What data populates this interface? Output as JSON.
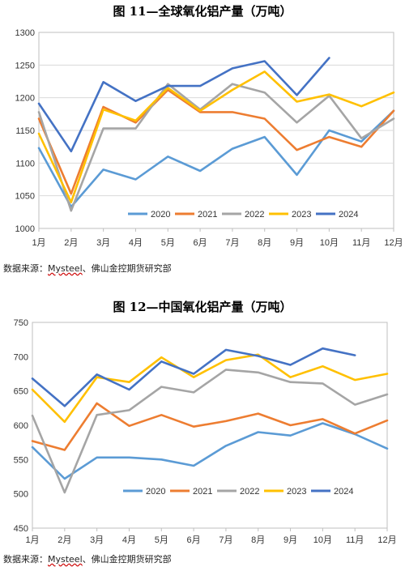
{
  "charts_meta": [
    {
      "title": "图 11—全球氧化铝产量（万吨）",
      "source_prefix": "数据来源：",
      "source_brand": "Mysteel",
      "source_suffix": "、佛山金控期货研究部"
    },
    {
      "title": "图 12—中国氧化铝产量（万吨）",
      "source_prefix": "数据来源：",
      "source_brand": "Mysteel",
      "source_suffix": "、佛山金控期货研究部"
    }
  ],
  "series_colors": {
    "2020": "#5b9bd5",
    "2021": "#ed7d31",
    "2022": "#a5a5a5",
    "2023": "#ffc000",
    "2024": "#4472c4"
  },
  "chart_data": [
    {
      "type": "line",
      "title": "图 11—全球氧化铝产量（万吨）",
      "categories": [
        "1月",
        "2月",
        "3月",
        "4月",
        "5月",
        "6月",
        "7月",
        "8月",
        "9月",
        "10月",
        "11月",
        "12月"
      ],
      "ylim": [
        1000,
        1300
      ],
      "yticks": [
        1000,
        1050,
        1100,
        1150,
        1200,
        1250,
        1300
      ],
      "grid": true,
      "legend": "bottom-right-inside",
      "series": [
        {
          "name": "2020",
          "values": [
            1123,
            1033,
            1090,
            1075,
            1110,
            1088,
            1122,
            1140,
            1082,
            1150,
            1133,
            1180
          ]
        },
        {
          "name": "2021",
          "values": [
            1168,
            1053,
            1186,
            1162,
            1212,
            1178,
            1178,
            1168,
            1120,
            1140,
            1125,
            1180
          ]
        },
        {
          "name": "2022",
          "values": [
            1178,
            1027,
            1153,
            1153,
            1221,
            1182,
            1221,
            1208,
            1162,
            1203,
            1138,
            1168
          ]
        },
        {
          "name": "2023",
          "values": [
            1145,
            1040,
            1182,
            1165,
            1215,
            1180,
            1212,
            1240,
            1194,
            1205,
            1187,
            1208
          ]
        },
        {
          "name": "2024",
          "values": [
            1191,
            1118,
            1224,
            1195,
            1218,
            1218,
            1245,
            1256,
            1204,
            1261,
            null,
            null
          ]
        }
      ]
    },
    {
      "type": "line",
      "title": "图 12—中国氧化铝产量（万吨）",
      "categories": [
        "1月",
        "2月",
        "3月",
        "4月",
        "5月",
        "6月",
        "7月",
        "8月",
        "9月",
        "10月",
        "11月",
        "12月"
      ],
      "ylim": [
        450,
        750
      ],
      "yticks": [
        450,
        500,
        550,
        600,
        650,
        700,
        750
      ],
      "grid": false,
      "legend": "bottom-inside",
      "series": [
        {
          "name": "2020",
          "values": [
            568,
            522,
            553,
            553,
            550,
            541,
            570,
            590,
            585,
            603,
            587,
            566
          ]
        },
        {
          "name": "2021",
          "values": [
            577,
            564,
            632,
            599,
            615,
            598,
            606,
            617,
            600,
            609,
            588,
            607
          ]
        },
        {
          "name": "2022",
          "values": [
            614,
            502,
            615,
            622,
            656,
            648,
            681,
            677,
            663,
            661,
            630,
            645
          ]
        },
        {
          "name": "2023",
          "values": [
            652,
            605,
            670,
            663,
            699,
            670,
            695,
            703,
            670,
            686,
            666,
            675
          ]
        },
        {
          "name": "2024",
          "values": [
            668,
            628,
            674,
            652,
            693,
            675,
            710,
            701,
            688,
            712,
            702,
            null
          ]
        }
      ]
    }
  ]
}
